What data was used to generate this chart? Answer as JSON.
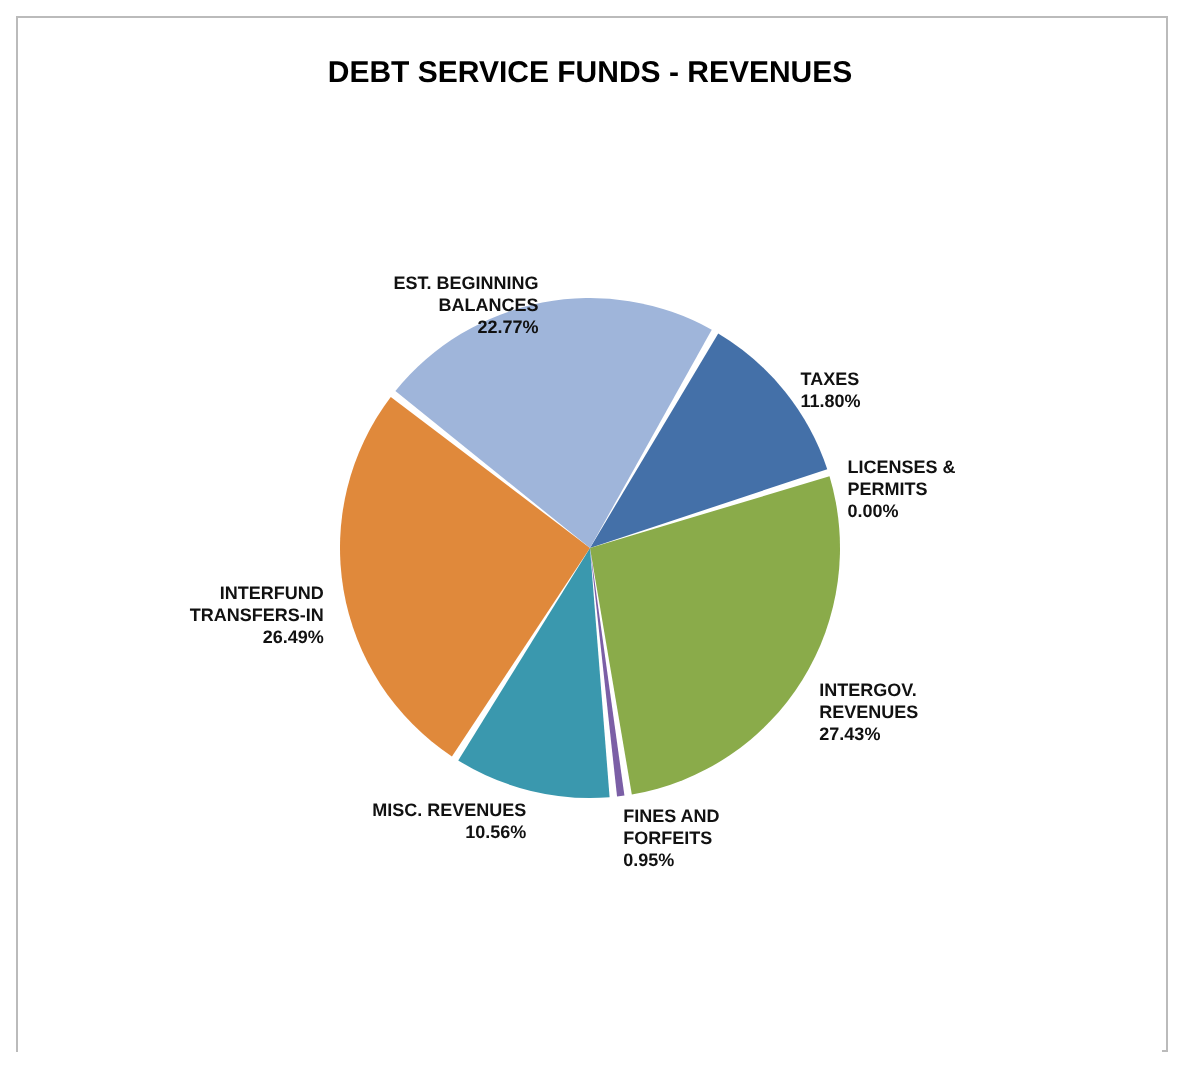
{
  "chart_data": {
    "type": "pie",
    "title": "DEBT SERVICE FUNDS - REVENUES",
    "categories": [
      "TAXES",
      "LICENSES & PERMITS",
      "INTERGOV. REVENUES",
      "FINES AND FORFEITS",
      "MISC. REVENUES",
      "INTERFUND TRANSFERS-IN",
      "EST. BEGINNING BALANCES"
    ],
    "values": [
      11.8,
      0.0,
      27.43,
      0.95,
      10.56,
      26.49,
      22.77
    ],
    "value_labels": [
      "11.80%",
      "0.00%",
      "27.43%",
      "0.95%",
      "10.56%",
      "26.49%",
      "22.77%"
    ],
    "colors": [
      "#4470a8",
      "#6b2b2b",
      "#8aab4a",
      "#7b5fa6",
      "#3a98ae",
      "#e0893b",
      "#9fb5da"
    ],
    "legend": false
  }
}
